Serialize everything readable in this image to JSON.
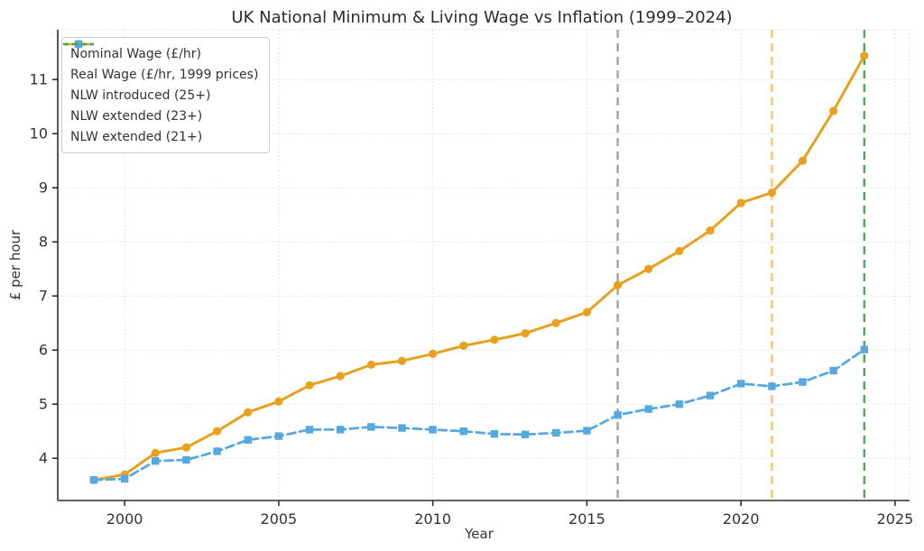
{
  "figure": {
    "title": "UK National Minimum & Living Wage vs Inflation (1999–2024)",
    "xlabel": "Year",
    "ylabel": "£ per hour"
  },
  "chart_data": {
    "type": "line",
    "title": "UK National Minimum & Living Wage vs Inflation (1999–2024)",
    "xlabel": "Year",
    "ylabel": "£ per hour",
    "grid": true,
    "legend_position": "upper left",
    "xlim": [
      1997.83,
      2025.47
    ],
    "ylim": [
      3.22,
      11.92
    ],
    "xticks": [
      2000,
      2005,
      2010,
      2015,
      2020,
      2025
    ],
    "yticks": [
      4,
      5,
      6,
      7,
      8,
      9,
      10,
      11
    ],
    "x": [
      1999,
      2000,
      2001,
      2002,
      2003,
      2004,
      2005,
      2006,
      2007,
      2008,
      2009,
      2010,
      2011,
      2012,
      2013,
      2014,
      2015,
      2016,
      2017,
      2018,
      2019,
      2020,
      2021,
      2022,
      2023,
      2024
    ],
    "series": [
      {
        "name": "Nominal Wage (£/hr)",
        "color": "#E8A11E",
        "marker": "circle",
        "dash": "solid",
        "width": 3,
        "values": [
          3.6,
          3.7,
          4.1,
          4.2,
          4.5,
          4.85,
          5.05,
          5.35,
          5.52,
          5.73,
          5.8,
          5.93,
          6.08,
          6.19,
          6.31,
          6.5,
          6.7,
          7.2,
          7.5,
          7.83,
          8.21,
          8.72,
          8.91,
          9.5,
          10.42,
          11.44
        ]
      },
      {
        "name": "Real Wage (£/hr, 1999 prices)",
        "color": "#56A9E0",
        "marker": "square",
        "dash": "dashed",
        "width": 2.8,
        "values": [
          3.6,
          3.62,
          3.95,
          3.97,
          4.13,
          4.34,
          4.41,
          4.53,
          4.53,
          4.58,
          4.56,
          4.53,
          4.5,
          4.45,
          4.44,
          4.47,
          4.51,
          4.8,
          4.91,
          5.0,
          5.16,
          5.38,
          5.33,
          5.41,
          5.62,
          6.01
        ]
      }
    ],
    "vlines": [
      {
        "label": "NLW introduced (25+)",
        "year": 2016,
        "color": "#9E9E9E"
      },
      {
        "label": "NLW extended (23+)",
        "year": 2021,
        "color": "#FFC069"
      },
      {
        "label": "NLW extended (21+)",
        "year": 2024,
        "color": "#4CA64F"
      }
    ]
  }
}
